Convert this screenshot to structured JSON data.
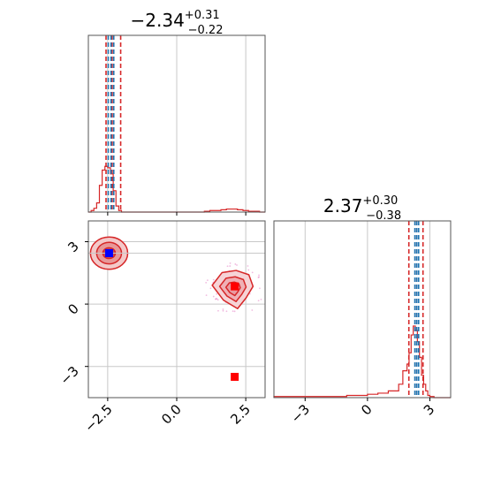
{
  "chart_data": {
    "type": "corner",
    "params": [
      "p0",
      "p1"
    ],
    "titles": [
      {
        "main": "−2.34",
        "sup": "+0.31",
        "sub": "−0.22"
      },
      {
        "main": "2.37",
        "sup": "+0.30",
        "sub": "−0.38"
      }
    ],
    "axes": {
      "p0": {
        "range": [
          -3.2,
          3.2
        ],
        "ticks": [
          -2.5,
          0.0,
          2.5
        ],
        "tick_labels": [
          "−2.5",
          "0.0",
          "2.5"
        ]
      },
      "p1": {
        "range": [
          -4.5,
          4.0
        ],
        "ticks": [
          -3,
          0,
          3
        ],
        "tick_labels": [
          "−3",
          "0",
          "3"
        ]
      }
    },
    "grid": true,
    "colors": {
      "posterior": "#d62728",
      "quantile": "#d62728",
      "truth": "#1f77b4",
      "scatter": "#e377c2",
      "marker_primary": "#0000ff",
      "marker_secondary": "#ff0000"
    },
    "hist_p0": {
      "bins": [
        -3.2,
        -3.1,
        -3.0,
        -2.9,
        -2.8,
        -2.7,
        -2.6,
        -2.5,
        -2.4,
        -2.3,
        -2.2,
        -2.1,
        -2.0,
        -1.9,
        -1.8,
        1.0,
        1.2,
        1.4,
        1.6,
        1.8,
        2.0,
        2.2,
        2.4,
        2.6,
        2.8,
        3.0,
        3.2
      ],
      "counts": [
        0,
        0.02,
        0.05,
        0.12,
        0.35,
        0.55,
        0.6,
        0.58,
        0.5,
        0.28,
        0.08,
        0.02,
        0,
        0,
        0,
        0.01,
        0.02,
        0.02,
        0.03,
        0.04,
        0.04,
        0.03,
        0.02,
        0.01,
        0.01,
        0.0
      ]
    },
    "hist_p1": {
      "bins": [
        -4.5,
        -1.0,
        0.0,
        0.5,
        1.0,
        1.5,
        1.7,
        1.9,
        2.0,
        2.1,
        2.2,
        2.3,
        2.4,
        2.5,
        2.6,
        2.7,
        2.8,
        2.9,
        3.0,
        3.2,
        3.4,
        4.0
      ],
      "counts": [
        0.005,
        0.01,
        0.015,
        0.02,
        0.03,
        0.06,
        0.12,
        0.15,
        0.2,
        0.28,
        0.32,
        0.3,
        0.25,
        0.18,
        0.1,
        0.06,
        0.03,
        0.01,
        0.005,
        0,
        0
      ]
    },
    "quantiles_p0": [
      -2.56,
      -2.34,
      -2.03
    ],
    "quantiles_p1": [
      1.99,
      2.37,
      2.67
    ],
    "truths": {
      "p0": [
        -2.48,
        -2.38,
        -2.28
      ],
      "p1": [
        2.28,
        2.37,
        2.46
      ]
    },
    "contours": [
      {
        "cx": -2.45,
        "cy": 2.45,
        "levels": [
          0.9,
          0.6,
          0.3
        ]
      },
      {
        "cx": 2.05,
        "cy": 0.75,
        "levels": [
          0.85,
          0.55,
          0.3
        ]
      }
    ],
    "markers": [
      {
        "x": -2.45,
        "y": 2.45,
        "color": "#0000ff"
      },
      {
        "x": 2.1,
        "y": 0.85,
        "color": "#ff0000"
      },
      {
        "x": 2.1,
        "y": -3.5,
        "color": "#ff0000"
      }
    ]
  }
}
